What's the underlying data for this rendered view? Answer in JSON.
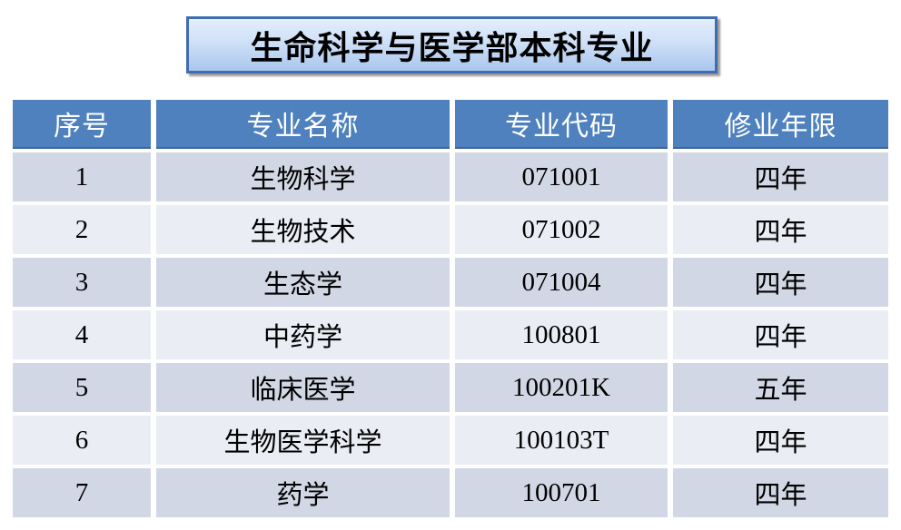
{
  "title": "生命科学与医学部本科专业",
  "table": {
    "headers": [
      "序号",
      "专业名称",
      "专业代码",
      "修业年限"
    ],
    "rows": [
      [
        "1",
        "生物科学",
        "071001",
        "四年"
      ],
      [
        "2",
        "生物技术",
        "071002",
        "四年"
      ],
      [
        "3",
        "生态学",
        "071004",
        "四年"
      ],
      [
        "4",
        "中药学",
        "100801",
        "四年"
      ],
      [
        "5",
        "临床医学",
        "100201K",
        "五年"
      ],
      [
        "6",
        "生物医学科学",
        "100103T",
        "四年"
      ],
      [
        "7",
        "药学",
        "100701",
        "四年"
      ]
    ]
  },
  "colors": {
    "header_bg": "#4e81bd",
    "header_text": "#ffffff",
    "row_odd_bg": "#d2d7e5",
    "row_even_bg": "#eaedf4",
    "title_border": "#3e6db0",
    "title_gradient_top": "#e4eefc",
    "title_gradient_bottom": "#a9c6ee",
    "body_text": "#000000"
  }
}
